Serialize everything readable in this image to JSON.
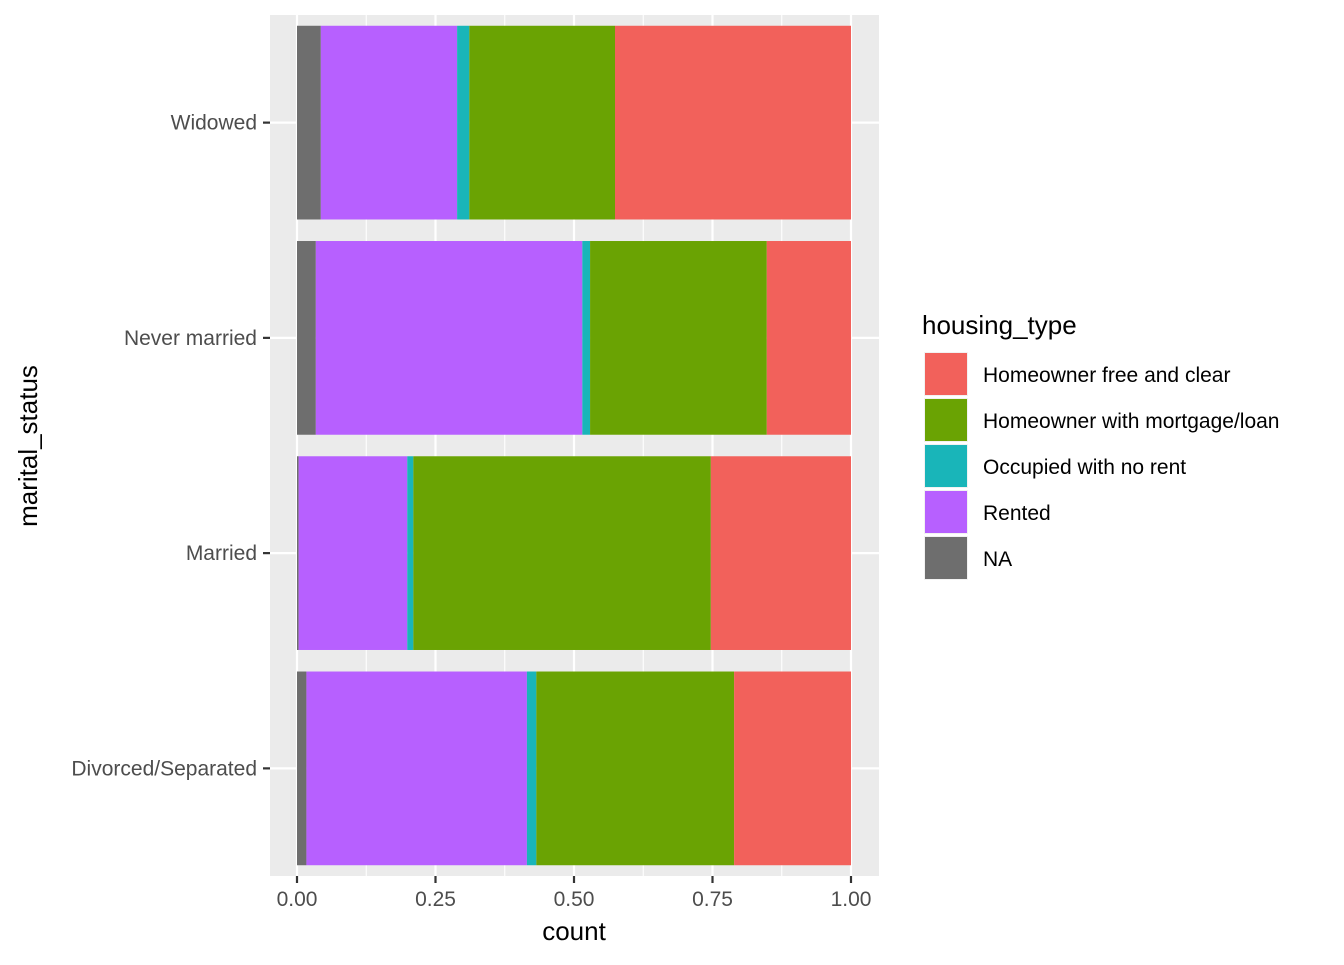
{
  "chart_data": {
    "type": "bar",
    "orientation": "horizontal",
    "stacked": "fill",
    "xlabel": "count",
    "ylabel": "marital_status",
    "xlim": [
      -0.05,
      1.05
    ],
    "x_ticks": [
      0.0,
      0.25,
      0.5,
      0.75,
      1.0
    ],
    "x_tick_labels": [
      "0.00",
      "0.25",
      "0.50",
      "0.75",
      "1.00"
    ],
    "grid": true,
    "legend_position": "right",
    "categories": [
      "Divorced/Separated",
      "Married",
      "Never married",
      "Widowed"
    ],
    "legend": {
      "title": "housing_type",
      "entries": [
        "Homeowner free and clear",
        "Homeowner with mortgage/loan",
        "Occupied with no rent",
        "Rented",
        "NA"
      ]
    },
    "series": [
      {
        "name": "NA",
        "color": "#6e6e6e",
        "values": [
          0.017,
          0.003,
          0.034,
          0.043
        ]
      },
      {
        "name": "Rented",
        "color": "#b760ff",
        "values": [
          0.398,
          0.196,
          0.481,
          0.246
        ]
      },
      {
        "name": "Occupied with no rent",
        "color": "#19b5b9",
        "values": [
          0.017,
          0.011,
          0.014,
          0.022
        ]
      },
      {
        "name": "Homeowner with mortgage/loan",
        "color": "#6aa303",
        "values": [
          0.357,
          0.537,
          0.319,
          0.263
        ]
      },
      {
        "name": "Homeowner free and clear",
        "color": "#f2615b",
        "values": [
          0.211,
          0.253,
          0.152,
          0.426
        ]
      }
    ]
  }
}
